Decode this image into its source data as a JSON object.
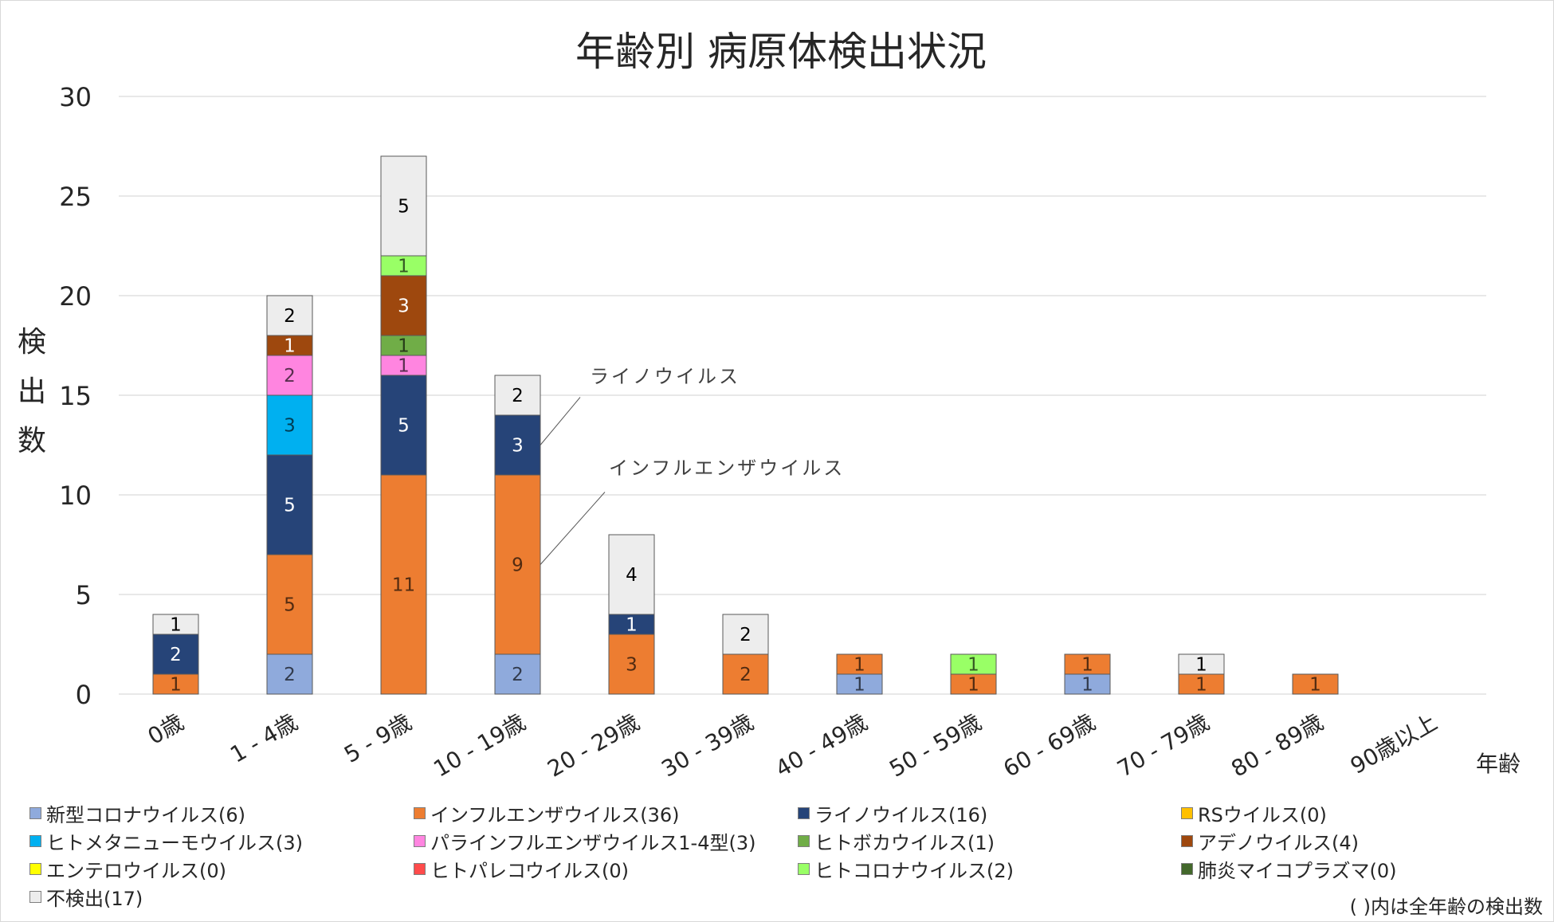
{
  "chart_data": {
    "type": "bar",
    "stacked": true,
    "title": "年齢別 病原体検出状況",
    "ylabel": "検出数",
    "xlabel": "年齢",
    "ylim": [
      0,
      30
    ],
    "yticks": [
      0,
      5,
      10,
      15,
      20,
      25,
      30
    ],
    "grid": true,
    "legend_placement": "bottom",
    "categories": [
      "0歳",
      "1 - 4歳",
      "5 - 9歳",
      "10 - 19歳",
      "20 - 29歳",
      "30 - 39歳",
      "40 - 49歳",
      "50 - 59歳",
      "60 - 69歳",
      "70 - 79歳",
      "80 - 89歳",
      "90歳以上"
    ],
    "series": [
      {
        "name": "新型コロナウイルス(6)",
        "color": "#8FAADC",
        "values": [
          0,
          2,
          0,
          2,
          0,
          0,
          1,
          0,
          1,
          0,
          0,
          0
        ]
      },
      {
        "name": "インフルエンザウイルス(36)",
        "color": "#ED7D31",
        "values": [
          1,
          5,
          11,
          9,
          3,
          2,
          1,
          1,
          1,
          1,
          1,
          0
        ]
      },
      {
        "name": "ライノウイルス(16)",
        "color": "#264478",
        "values": [
          2,
          5,
          5,
          3,
          1,
          0,
          0,
          0,
          0,
          0,
          0,
          0
        ]
      },
      {
        "name": "RSウイルス(0)",
        "color": "#FFC000",
        "values": [
          0,
          0,
          0,
          0,
          0,
          0,
          0,
          0,
          0,
          0,
          0,
          0
        ]
      },
      {
        "name": "ヒトメタニューモウイルス(3)",
        "color": "#00B0F0",
        "values": [
          0,
          3,
          0,
          0,
          0,
          0,
          0,
          0,
          0,
          0,
          0,
          0
        ]
      },
      {
        "name": "パラインフルエンザウイルス1-4型(3)",
        "color": "#FF85E0",
        "values": [
          0,
          2,
          1,
          0,
          0,
          0,
          0,
          0,
          0,
          0,
          0,
          0
        ]
      },
      {
        "name": "ヒトボカウイルス(1)",
        "color": "#70AD47",
        "values": [
          0,
          0,
          1,
          0,
          0,
          0,
          0,
          0,
          0,
          0,
          0,
          0
        ]
      },
      {
        "name": "アデノウイルス(4)",
        "color": "#9E480E",
        "values": [
          0,
          1,
          3,
          0,
          0,
          0,
          0,
          0,
          0,
          0,
          0,
          0
        ]
      },
      {
        "name": "エンテロウイルス(0)",
        "color": "#FFFF00",
        "values": [
          0,
          0,
          0,
          0,
          0,
          0,
          0,
          0,
          0,
          0,
          0,
          0
        ]
      },
      {
        "name": "ヒトパレコウイルス(0)",
        "color": "#FF4B4B",
        "values": [
          0,
          0,
          0,
          0,
          0,
          0,
          0,
          0,
          0,
          0,
          0,
          0
        ]
      },
      {
        "name": "ヒトコロナウイルス(2)",
        "color": "#99FF66",
        "values": [
          0,
          0,
          1,
          0,
          0,
          0,
          0,
          1,
          0,
          0,
          0,
          0
        ]
      },
      {
        "name": "肺炎マイコプラズマ(0)",
        "color": "#43682B",
        "values": [
          0,
          0,
          0,
          0,
          0,
          0,
          0,
          0,
          0,
          0,
          0,
          0
        ]
      },
      {
        "name": "不検出(17)",
        "color": "#EDEDED",
        "values": [
          1,
          2,
          5,
          2,
          4,
          2,
          0,
          0,
          0,
          1,
          0,
          0
        ]
      }
    ],
    "annotations": [
      {
        "text": "ライノウイルス",
        "category": "10 - 19歳",
        "series": "ライノウイルス(16)"
      },
      {
        "text": "インフルエンザウイルス",
        "category": "10 - 19歳",
        "series": "インフルエンザウイルス(36)"
      }
    ],
    "footnote": "( )内は全年齢の検出数"
  }
}
